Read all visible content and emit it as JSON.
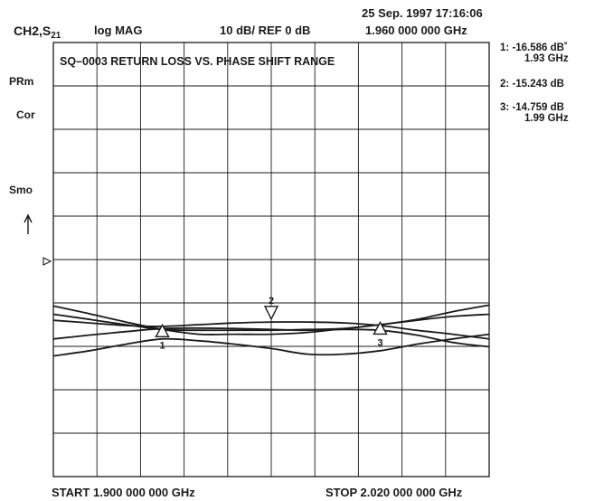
{
  "header": {
    "date_time": "25 Sep. 1997  17:16:06",
    "channel": "CH2,S",
    "channel_sub": "21",
    "format": "log MAG",
    "scale_ref": "10 dB/  REF 0  dB",
    "center_freq": "1.960 000 000 GHz"
  },
  "left_annotations": {
    "prm": "PRm",
    "cor": "Cor",
    "smo": "Smo"
  },
  "markers": [
    {
      "label": "1:",
      "value": "-16.586 dB˚",
      "freq": "1.93 GHz"
    },
    {
      "label": "2:",
      "value": "-15.243 dB",
      "freq": ""
    },
    {
      "label": "3:",
      "value": "-14.759 dB",
      "freq": "1.99 GHz"
    }
  ],
  "footer": {
    "start": "START  1.900 000 000  GHz",
    "stop": "STOP  2.020  000  000  GHz"
  },
  "colors": {
    "trace": "#1a1a1a",
    "grid": "#1a1a1a",
    "background": "#ffffff"
  },
  "chart_data": {
    "type": "line",
    "title": "SQ–0003   RETURN  LOSS VS. PHASE SHIFT RANGE",
    "x_unit": "GHz",
    "y_unit": "dB",
    "xlim": [
      1.9,
      2.02
    ],
    "ylim": [
      -100,
      0
    ],
    "grid": true,
    "x_divisions": 10,
    "y_divisions": 10,
    "series": [
      {
        "x": [
          1.9,
          1.91,
          1.92,
          1.93,
          1.94,
          1.95,
          1.96,
          1.97,
          1.98,
          1.99,
          2.0,
          2.01,
          2.02
        ],
        "y": [
          -60.7,
          -62.5,
          -64.4,
          -66.1,
          -67.2,
          -67.2,
          -67.2,
          -66.8,
          -65.9,
          -65.0,
          -63.8,
          -62.0,
          -60.5
        ]
      },
      {
        "x": [
          1.9,
          1.91,
          1.92,
          1.93,
          1.94,
          1.95,
          1.96,
          1.97,
          1.98,
          1.99,
          2.0,
          2.01,
          2.02
        ],
        "y": [
          -62.6,
          -63.8,
          -65.0,
          -66.1,
          -66.3,
          -66.3,
          -66.3,
          -66.1,
          -65.9,
          -65.0,
          -64.0,
          -63.1,
          -62.6
        ]
      },
      {
        "x": [
          1.9,
          1.91,
          1.92,
          1.93,
          1.94,
          1.95,
          1.96,
          1.97,
          1.98,
          1.99,
          2.0,
          2.01,
          2.02
        ],
        "y": [
          -64.0,
          -64.6,
          -65.2,
          -65.4,
          -65.0,
          -64.6,
          -64.4,
          -64.4,
          -64.6,
          -65.2,
          -66.3,
          -67.2,
          -68.3
        ]
      },
      {
        "x": [
          1.9,
          1.91,
          1.92,
          1.93,
          1.94,
          1.95,
          1.96,
          1.97,
          1.98,
          1.99,
          2.0,
          2.01,
          2.02
        ],
        "y": [
          -72.2,
          -71.0,
          -69.5,
          -68.3,
          -68.7,
          -69.5,
          -70.5,
          -71.8,
          -71.8,
          -71.0,
          -69.5,
          -68.3,
          -67.2
        ]
      },
      {
        "x": [
          1.9,
          1.91,
          1.92,
          1.93,
          1.94,
          1.95,
          1.96,
          1.97,
          1.98,
          1.99,
          2.0,
          2.01,
          2.02
        ],
        "y": [
          -68.3,
          -67.4,
          -66.6,
          -65.9,
          -65.8,
          -65.9,
          -66.1,
          -66.3,
          -66.1,
          -66.3,
          -67.4,
          -69.1,
          -70.1
        ]
      }
    ],
    "marker_points": [
      {
        "label": "1",
        "x": 1.93,
        "y": -66.1,
        "style": "up"
      },
      {
        "label": "2",
        "x": 1.96,
        "y": -63.5,
        "style": "down"
      },
      {
        "label": "3",
        "x": 1.99,
        "y": -65.5,
        "style": "up"
      }
    ]
  }
}
